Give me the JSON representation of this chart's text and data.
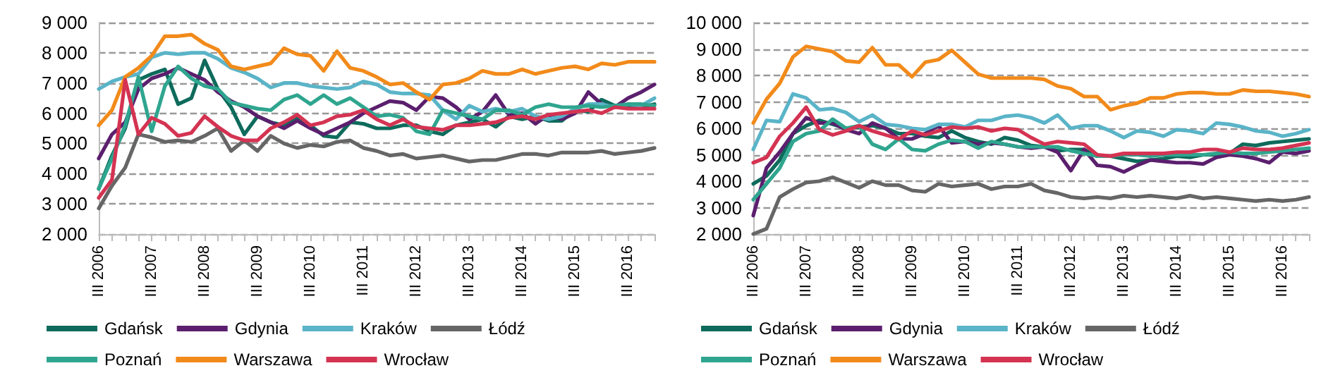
{
  "chart_data": [
    {
      "type": "line",
      "categories": [
        "III 2006",
        null,
        null,
        null,
        "III 2007",
        null,
        null,
        null,
        "III 2008",
        null,
        null,
        null,
        "III 2009",
        null,
        null,
        null,
        "III 2010",
        null,
        null,
        null,
        "III 2011",
        null,
        null,
        null,
        "III 2012",
        null,
        null,
        null,
        "III 2013",
        null,
        null,
        null,
        "III 2014",
        null,
        null,
        null,
        "III 2015",
        null,
        null,
        null,
        "III 2016",
        null,
        null
      ],
      "ylim": [
        2000,
        9000
      ],
      "yticks": [
        {
          "value": 2000,
          "label": "2 000"
        },
        {
          "value": 3000,
          "label": "3 000"
        },
        {
          "value": 4000,
          "label": "4 000"
        },
        {
          "value": 5000,
          "label": "5 000"
        },
        {
          "value": 6000,
          "label": "6 000"
        },
        {
          "value": 7000,
          "label": "7 000"
        },
        {
          "value": 8000,
          "label": "8 000"
        },
        {
          "value": 9000,
          "label": "9 000"
        }
      ],
      "grid": "y",
      "legend": "bottom",
      "marker": "none",
      "line_style": "solid",
      "series": [
        {
          "name": "Gdańsk",
          "color": "#0e6b5c",
          "values": [
            3500,
            4600,
            5500,
            7100,
            7300,
            7450,
            6300,
            6500,
            7750,
            6800,
            6200,
            5300,
            5900,
            5700,
            5600,
            5850,
            5600,
            5250,
            5200,
            5700,
            5650,
            5500,
            5500,
            5600,
            5600,
            5400,
            5300,
            5600,
            5700,
            5800,
            5550,
            5900,
            5800,
            5900,
            5750,
            5750,
            6100,
            6050,
            6450,
            6250,
            6250,
            6200,
            6300
          ]
        },
        {
          "name": "Gdynia",
          "color": "#5b1f6e",
          "values": [
            4500,
            5300,
            5700,
            6800,
            7150,
            7300,
            7500,
            7300,
            7100,
            6700,
            6400,
            6200,
            5900,
            5700,
            5500,
            5750,
            5500,
            5300,
            5500,
            5700,
            6000,
            6200,
            6400,
            6350,
            6100,
            6550,
            6500,
            6200,
            5800,
            6050,
            6600,
            5950,
            6000,
            5650,
            5950,
            5800,
            6000,
            6700,
            6300,
            6200,
            6500,
            6700,
            6950
          ]
        },
        {
          "name": "Kraków",
          "color": "#5ab4c8",
          "values": [
            6800,
            7050,
            7200,
            7300,
            7850,
            8000,
            7950,
            8000,
            8000,
            7800,
            7500,
            7350,
            7150,
            6850,
            7000,
            7000,
            6900,
            6850,
            6800,
            6850,
            7050,
            6950,
            6700,
            6650,
            6650,
            6600,
            6100,
            5800,
            6250,
            6050,
            6150,
            6050,
            6150,
            5900,
            5800,
            5900,
            6150,
            6300,
            6300,
            6200,
            6300,
            6250,
            6500
          ]
        },
        {
          "name": "Łódź",
          "color": "#666666",
          "values": [
            2850,
            3600,
            4200,
            5300,
            5200,
            5050,
            5100,
            5050,
            5250,
            5500,
            4750,
            5100,
            4750,
            5250,
            5000,
            4850,
            4950,
            4900,
            5050,
            5100,
            4850,
            4750,
            4600,
            4650,
            4500,
            4550,
            4600,
            4500,
            4400,
            4450,
            4450,
            4550,
            4650,
            4650,
            4600,
            4700,
            4700,
            4700,
            4750,
            4650,
            4700,
            4750,
            4850
          ]
        },
        {
          "name": "Poznań",
          "color": "#2fa58f",
          "values": [
            3500,
            4500,
            5600,
            7200,
            5400,
            6900,
            7550,
            7150,
            6900,
            6800,
            6350,
            6250,
            6150,
            6100,
            6450,
            6600,
            6300,
            6600,
            6300,
            6500,
            6200,
            5900,
            5950,
            5850,
            5400,
            5300,
            6100,
            6000,
            5900,
            5800,
            6100,
            6100,
            5950,
            6200,
            6300,
            6200,
            6200,
            6250,
            6200,
            6250,
            6300,
            6300,
            6250
          ]
        },
        {
          "name": "Warszawa",
          "color": "#f28a1a",
          "values": [
            5600,
            6100,
            7200,
            7500,
            7900,
            8550,
            8550,
            8600,
            8300,
            8100,
            7550,
            7450,
            7550,
            7650,
            8150,
            7950,
            7900,
            7400,
            8050,
            7500,
            7400,
            7200,
            6950,
            7000,
            6700,
            6450,
            6950,
            7000,
            7150,
            7400,
            7300,
            7300,
            7450,
            7300,
            7400,
            7500,
            7550,
            7450,
            7650,
            7600,
            7700,
            7700,
            7700
          ]
        },
        {
          "name": "Wrocław",
          "color": "#d43352",
          "values": [
            3200,
            3800,
            7100,
            5300,
            5850,
            5650,
            5250,
            5350,
            5900,
            5550,
            5250,
            5100,
            5100,
            5500,
            5700,
            5950,
            5600,
            5700,
            5900,
            5950,
            6100,
            5800,
            5600,
            5800,
            5550,
            5500,
            5450,
            5600,
            5600,
            5650,
            5700,
            5850,
            5900,
            5800,
            5950,
            6000,
            6050,
            6100,
            6000,
            6200,
            6150,
            6150,
            6150
          ]
        }
      ]
    },
    {
      "type": "line",
      "categories": [
        "III 2006",
        null,
        null,
        null,
        "III 2007",
        null,
        null,
        null,
        "III 2008",
        null,
        null,
        null,
        "III 2009",
        null,
        null,
        null,
        "III 2010",
        null,
        null,
        null,
        "III 2011",
        null,
        null,
        null,
        "III 2012",
        null,
        null,
        null,
        "III 2013",
        null,
        null,
        null,
        "III 2014",
        null,
        null,
        null,
        "III 2015",
        null,
        null,
        null,
        "III 2016",
        null,
        null
      ],
      "ylim": [
        2000,
        10000
      ],
      "yticks": [
        {
          "value": 2000,
          "label": "2 000"
        },
        {
          "value": 3000,
          "label": "3 000"
        },
        {
          "value": 4000,
          "label": "4 000"
        },
        {
          "value": 5000,
          "label": "5 000"
        },
        {
          "value": 6000,
          "label": "6 000"
        },
        {
          "value": 7000,
          "label": "7 000"
        },
        {
          "value": 8000,
          "label": "8 000"
        },
        {
          "value": 9000,
          "label": "9 000"
        },
        {
          "value": 10000,
          "label": "10 000"
        }
      ],
      "grid": "y",
      "legend": "bottom",
      "marker": "none",
      "line_style": "solid",
      "series": [
        {
          "name": "Gdańsk",
          "color": "#0e6b5c",
          "values": [
            3900,
            4200,
            4800,
            5800,
            6100,
            6300,
            6150,
            6000,
            6050,
            6100,
            6000,
            5800,
            5800,
            5700,
            5650,
            5900,
            5650,
            5500,
            5400,
            5650,
            5550,
            5350,
            5300,
            5150,
            5200,
            5200,
            4950,
            4950,
            4850,
            4750,
            4800,
            4850,
            4950,
            4900,
            5000,
            5000,
            5050,
            5400,
            5350,
            5450,
            5500,
            5550,
            5600
          ]
        },
        {
          "name": "Gdynia",
          "color": "#5b1f6e",
          "values": [
            2700,
            4500,
            5100,
            5800,
            6400,
            6200,
            6200,
            5950,
            5800,
            6200,
            6000,
            5600,
            5600,
            5800,
            6100,
            5450,
            5500,
            5400,
            5450,
            5400,
            5300,
            5250,
            5300,
            5100,
            4400,
            5200,
            4600,
            4550,
            4350,
            4600,
            4800,
            4750,
            4700,
            4700,
            4650,
            4900,
            5000,
            4950,
            4850,
            4700,
            5100,
            5050,
            5150
          ]
        },
        {
          "name": "Kraków",
          "color": "#5ab4c8",
          "values": [
            5200,
            6300,
            6250,
            7300,
            7150,
            6700,
            6750,
            6600,
            6250,
            6500,
            6150,
            6100,
            6000,
            5950,
            6150,
            6150,
            6050,
            6300,
            6300,
            6450,
            6500,
            6400,
            6200,
            6500,
            6000,
            6100,
            6100,
            5900,
            5650,
            5900,
            5850,
            5700,
            5950,
            5900,
            5800,
            6200,
            6150,
            6050,
            5900,
            5850,
            5700,
            5800,
            5950
          ]
        },
        {
          "name": "Łódź",
          "color": "#666666",
          "values": [
            2000,
            2200,
            3400,
            3700,
            3950,
            4000,
            4150,
            3950,
            3750,
            4000,
            3850,
            3850,
            3650,
            3600,
            3900,
            3800,
            3850,
            3900,
            3700,
            3800,
            3800,
            3900,
            3650,
            3550,
            3400,
            3350,
            3400,
            3350,
            3450,
            3400,
            3450,
            3400,
            3350,
            3450,
            3350,
            3400,
            3350,
            3300,
            3250,
            3300,
            3250,
            3300,
            3400
          ]
        },
        {
          "name": "Poznań",
          "color": "#2fa58f",
          "values": [
            3300,
            3900,
            4500,
            5500,
            5800,
            5900,
            6350,
            6000,
            6100,
            5400,
            5200,
            5600,
            5200,
            5150,
            5400,
            5550,
            5500,
            5250,
            5500,
            5400,
            5300,
            5300,
            5300,
            5300,
            5150,
            5050,
            4950,
            4950,
            5000,
            5000,
            4950,
            5000,
            5000,
            5000,
            5000,
            5050,
            5100,
            5050,
            5050,
            5100,
            5150,
            5200,
            5250
          ]
        },
        {
          "name": "Warszawa",
          "color": "#f28a1a",
          "values": [
            6200,
            7100,
            7700,
            8700,
            9100,
            9000,
            8900,
            8550,
            8500,
            9050,
            8400,
            8400,
            7950,
            8500,
            8600,
            8950,
            8500,
            8050,
            7900,
            7900,
            7900,
            7900,
            7850,
            7600,
            7500,
            7200,
            7200,
            6700,
            6850,
            6950,
            7150,
            7150,
            7300,
            7350,
            7350,
            7300,
            7300,
            7450,
            7400,
            7400,
            7350,
            7300,
            7200
          ]
        },
        {
          "name": "Wrocław",
          "color": "#d43352",
          "values": [
            4700,
            4900,
            5700,
            6200,
            6800,
            5950,
            5750,
            5900,
            6100,
            5900,
            5750,
            5600,
            5900,
            5750,
            5900,
            6050,
            6000,
            6050,
            5900,
            6000,
            5950,
            5650,
            5400,
            5500,
            5450,
            5400,
            5000,
            4950,
            5050,
            5050,
            5050,
            5050,
            5100,
            5100,
            5200,
            5200,
            5100,
            5250,
            5200,
            5200,
            5250,
            5350,
            5450
          ]
        }
      ]
    }
  ]
}
